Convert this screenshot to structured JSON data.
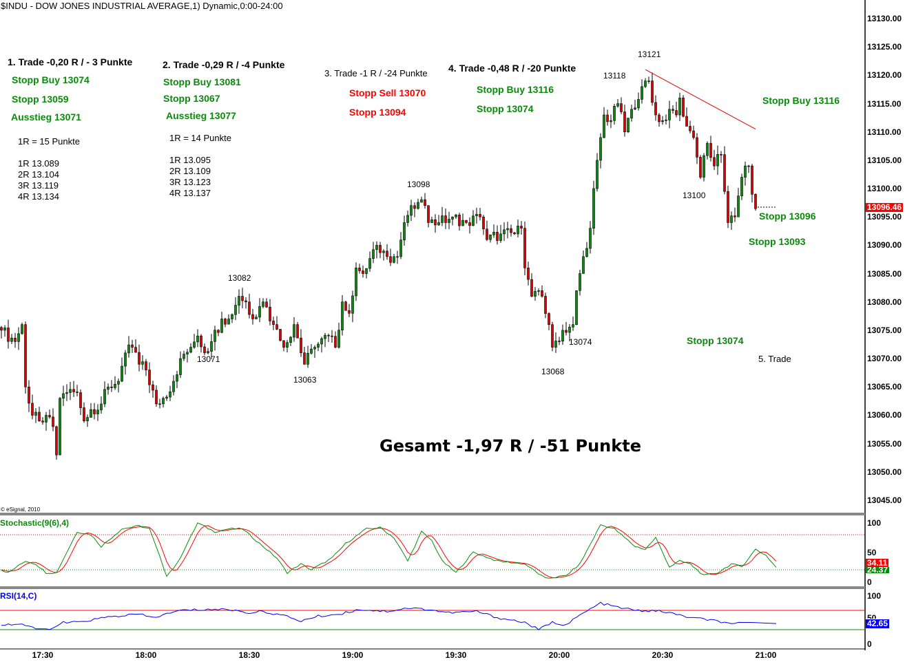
{
  "header": {
    "title": "$INDU - DOW JONES INDUSTRIAL AVERAGE,1) Dynamic,0:00-24:00",
    "copyright": "© eSignal, 2010"
  },
  "annotations": {
    "trade1": {
      "title": "1. Trade -0,20 R / - 3 Punkte",
      "l1": "Stopp Buy 13074",
      "l2": "Stopp 13059",
      "l3": "Ausstieg 13071",
      "r": "1R = 15 Punkte",
      "t1": "1R 13.089",
      "t2": "2R 13.104",
      "t3": "3R 13.119",
      "t4": "4R 13.134"
    },
    "trade2": {
      "title": "2. Trade -0,29 R / -4 Punkte",
      "l1": "Stopp Buy 13081",
      "l2": "Stopp 13067",
      "l3": "Ausstieg 13077",
      "r": "1R = 14 Punkte",
      "t1": "1R 13.095",
      "t2": "2R 13.109",
      "t3": "3R 13.123",
      "t4": "4R 13.137"
    },
    "trade3": {
      "title": "3. Trade -1 R / -24 Punkte",
      "l1": "Stopp Sell 13070",
      "l2": "Stopp 13094"
    },
    "trade4": {
      "title": "4. Trade -0,48 R / -20 Punkte",
      "l1": "Stopp Buy 13116",
      "l2": "Stopp 13074"
    },
    "trade5": {
      "title": "5. Trade",
      "l1": "Stopp Buy 13116",
      "l2": "Stopp 13096",
      "l3": "Stopp 13093",
      "l4": "Stopp 13074"
    },
    "total": "Gesamt -1,97 R / -51 Punkte",
    "pivots": {
      "p1": "13121",
      "p2": "13118",
      "p3": "13098",
      "p4": "13082",
      "p5": "13071",
      "p6": "13063",
      "p7": "13074",
      "p8": "13068",
      "p9": "13100"
    }
  },
  "chart_data": {
    "type": "candlestick",
    "title": "$INDU - DOW JONES INDUSTRIAL AVERAGE,1) Dynamic,0:00-24:00",
    "interval": "1 minute",
    "start_time": "17:18",
    "close_keypoints_minute_price": [
      [
        0,
        13075
      ],
      [
        4,
        13073
      ],
      [
        6,
        13076
      ],
      [
        7,
        13065
      ],
      [
        9,
        13060
      ],
      [
        11,
        13059
      ],
      [
        13,
        13060
      ],
      [
        15,
        13058
      ],
      [
        16,
        13053
      ],
      [
        17,
        13063
      ],
      [
        19,
        13064
      ],
      [
        22,
        13064
      ],
      [
        24,
        13059
      ],
      [
        26,
        13061
      ],
      [
        29,
        13062
      ],
      [
        31,
        13065
      ],
      [
        34,
        13066
      ],
      [
        36,
        13071
      ],
      [
        38,
        13072
      ],
      [
        40,
        13069
      ],
      [
        42,
        13068
      ],
      [
        45,
        13062
      ],
      [
        47,
        13063
      ],
      [
        50,
        13066
      ],
      [
        52,
        13070
      ],
      [
        55,
        13072
      ],
      [
        57,
        13074
      ],
      [
        59,
        13071
      ],
      [
        61,
        13073
      ],
      [
        64,
        13077
      ],
      [
        66,
        13077
      ],
      [
        69,
        13081
      ],
      [
        71,
        13080
      ],
      [
        73,
        13077
      ],
      [
        76,
        13080
      ],
      [
        79,
        13076
      ],
      [
        82,
        13072
      ],
      [
        85,
        13076
      ],
      [
        88,
        13069
      ],
      [
        91,
        13072
      ],
      [
        95,
        13074
      ],
      [
        97,
        13072
      ],
      [
        99,
        13080
      ],
      [
        101,
        13078
      ],
      [
        103,
        13086
      ],
      [
        105,
        13085
      ],
      [
        109,
        13090
      ],
      [
        112,
        13088
      ],
      [
        115,
        13088
      ],
      [
        117,
        13094
      ],
      [
        119,
        13097
      ],
      [
        123,
        13097
      ],
      [
        124,
        13094
      ],
      [
        127,
        13094
      ],
      [
        131,
        13095
      ],
      [
        135,
        13094
      ],
      [
        139,
        13095
      ],
      [
        141,
        13091
      ],
      [
        145,
        13092
      ],
      [
        149,
        13092
      ],
      [
        151,
        13093
      ],
      [
        152,
        13086
      ],
      [
        154,
        13081
      ],
      [
        157,
        13081
      ],
      [
        159,
        13076
      ],
      [
        160,
        13072
      ],
      [
        163,
        13075
      ],
      [
        166,
        13076
      ],
      [
        167,
        13082
      ],
      [
        169,
        13088
      ],
      [
        171,
        13093
      ],
      [
        172,
        13100
      ],
      [
        173,
        13105
      ],
      [
        174,
        13109
      ],
      [
        175,
        13113
      ],
      [
        177,
        13112
      ],
      [
        179,
        13115
      ],
      [
        181,
        13110
      ],
      [
        183,
        13114
      ],
      [
        186,
        13118
      ],
      [
        188,
        13119
      ],
      [
        190,
        13113
      ],
      [
        192,
        13112
      ],
      [
        194,
        13114
      ],
      [
        196,
        13113
      ],
      [
        197,
        13116
      ],
      [
        199,
        13111
      ],
      [
        201,
        13109
      ],
      [
        203,
        13102
      ],
      [
        205,
        13108
      ],
      [
        207,
        13104
      ],
      [
        209,
        13106
      ],
      [
        211,
        13094
      ],
      [
        213,
        13095
      ],
      [
        215,
        13102
      ],
      [
        216,
        13104
      ],
      [
        217,
        13104
      ],
      [
        218,
        13099
      ],
      [
        219,
        13096.46
      ]
    ],
    "last_price": "13096.46",
    "y_axis": {
      "ylim": [
        13042,
        13133
      ],
      "ticks": [
        "13130.00",
        "13125.00",
        "13120.00",
        "13115.00",
        "13110.00",
        "13105.00",
        "13100.00",
        "13095.00",
        "13090.00",
        "13085.00",
        "13080.00",
        "13075.00",
        "13070.00",
        "13065.00",
        "13060.00",
        "13055.00",
        "13050.00",
        "13045.00"
      ]
    },
    "x_axis": {
      "ticks": [
        "17:30",
        "18:00",
        "18:30",
        "19:00",
        "19:30",
        "20:00",
        "20:30",
        "21:00"
      ]
    },
    "trendline": {
      "from": [
        187,
        13121
      ],
      "to": [
        219,
        13110.5
      ],
      "color": "#e00000"
    },
    "stochastic": {
      "label": "Stochastic(9(6),4)",
      "ticks": [
        "100",
        "50",
        "0"
      ],
      "levels": [
        80,
        20
      ],
      "k_last": "24.37",
      "d_last": "34.11",
      "k_color": "#0a8a0a",
      "d_color": "#ff0000",
      "k_keypoints": [
        [
          0,
          20
        ],
        [
          2,
          15
        ],
        [
          7,
          35
        ],
        [
          10,
          30
        ],
        [
          13,
          15
        ],
        [
          16,
          15
        ],
        [
          22,
          85
        ],
        [
          26,
          80
        ],
        [
          29,
          60
        ],
        [
          35,
          90
        ],
        [
          40,
          95
        ],
        [
          43,
          90
        ],
        [
          48,
          10
        ],
        [
          51,
          30
        ],
        [
          57,
          100
        ],
        [
          62,
          85
        ],
        [
          66,
          90
        ],
        [
          70,
          90
        ],
        [
          74,
          70
        ],
        [
          80,
          40
        ],
        [
          83,
          15
        ],
        [
          87,
          30
        ],
        [
          90,
          20
        ],
        [
          96,
          40
        ],
        [
          100,
          65
        ],
        [
          106,
          90
        ],
        [
          110,
          92
        ],
        [
          114,
          75
        ],
        [
          118,
          35
        ],
        [
          122,
          85
        ],
        [
          125,
          70
        ],
        [
          128,
          35
        ],
        [
          132,
          15
        ],
        [
          137,
          50
        ],
        [
          144,
          35
        ],
        [
          152,
          30
        ],
        [
          158,
          5
        ],
        [
          164,
          10
        ],
        [
          168,
          30
        ],
        [
          174,
          97
        ],
        [
          178,
          90
        ],
        [
          184,
          60
        ],
        [
          187,
          55
        ],
        [
          190,
          75
        ],
        [
          194,
          25
        ],
        [
          197,
          35
        ],
        [
          200,
          30
        ],
        [
          204,
          10
        ],
        [
          208,
          15
        ],
        [
          212,
          30
        ],
        [
          215,
          25
        ],
        [
          219,
          55
        ],
        [
          222,
          45
        ],
        [
          225,
          24
        ]
      ]
    },
    "rsi": {
      "label": "RSI(14,C)",
      "ticks": [
        "100",
        "50",
        "0"
      ],
      "levels": [
        70,
        30
      ],
      "last": "42.65",
      "color": "#0000ff",
      "keypoints": [
        [
          0,
          40
        ],
        [
          6,
          42
        ],
        [
          8,
          35
        ],
        [
          12,
          30
        ],
        [
          16,
          35
        ],
        [
          18,
          45
        ],
        [
          22,
          45
        ],
        [
          30,
          55
        ],
        [
          36,
          60
        ],
        [
          40,
          62
        ],
        [
          44,
          55
        ],
        [
          52,
          70
        ],
        [
          60,
          72
        ],
        [
          66,
          72
        ],
        [
          72,
          65
        ],
        [
          76,
          68
        ],
        [
          80,
          62
        ],
        [
          84,
          55
        ],
        [
          87,
          48
        ],
        [
          92,
          58
        ],
        [
          98,
          62
        ],
        [
          104,
          72
        ],
        [
          112,
          68
        ],
        [
          118,
          75
        ],
        [
          124,
          72
        ],
        [
          130,
          65
        ],
        [
          138,
          68
        ],
        [
          144,
          55
        ],
        [
          152,
          45
        ],
        [
          156,
          30
        ],
        [
          160,
          45
        ],
        [
          164,
          40
        ],
        [
          168,
          60
        ],
        [
          174,
          85
        ],
        [
          178,
          78
        ],
        [
          184,
          70
        ],
        [
          192,
          68
        ],
        [
          200,
          55
        ],
        [
          208,
          48
        ],
        [
          212,
          40
        ],
        [
          215,
          45
        ],
        [
          218,
          45
        ],
        [
          225,
          42.65
        ]
      ]
    }
  }
}
